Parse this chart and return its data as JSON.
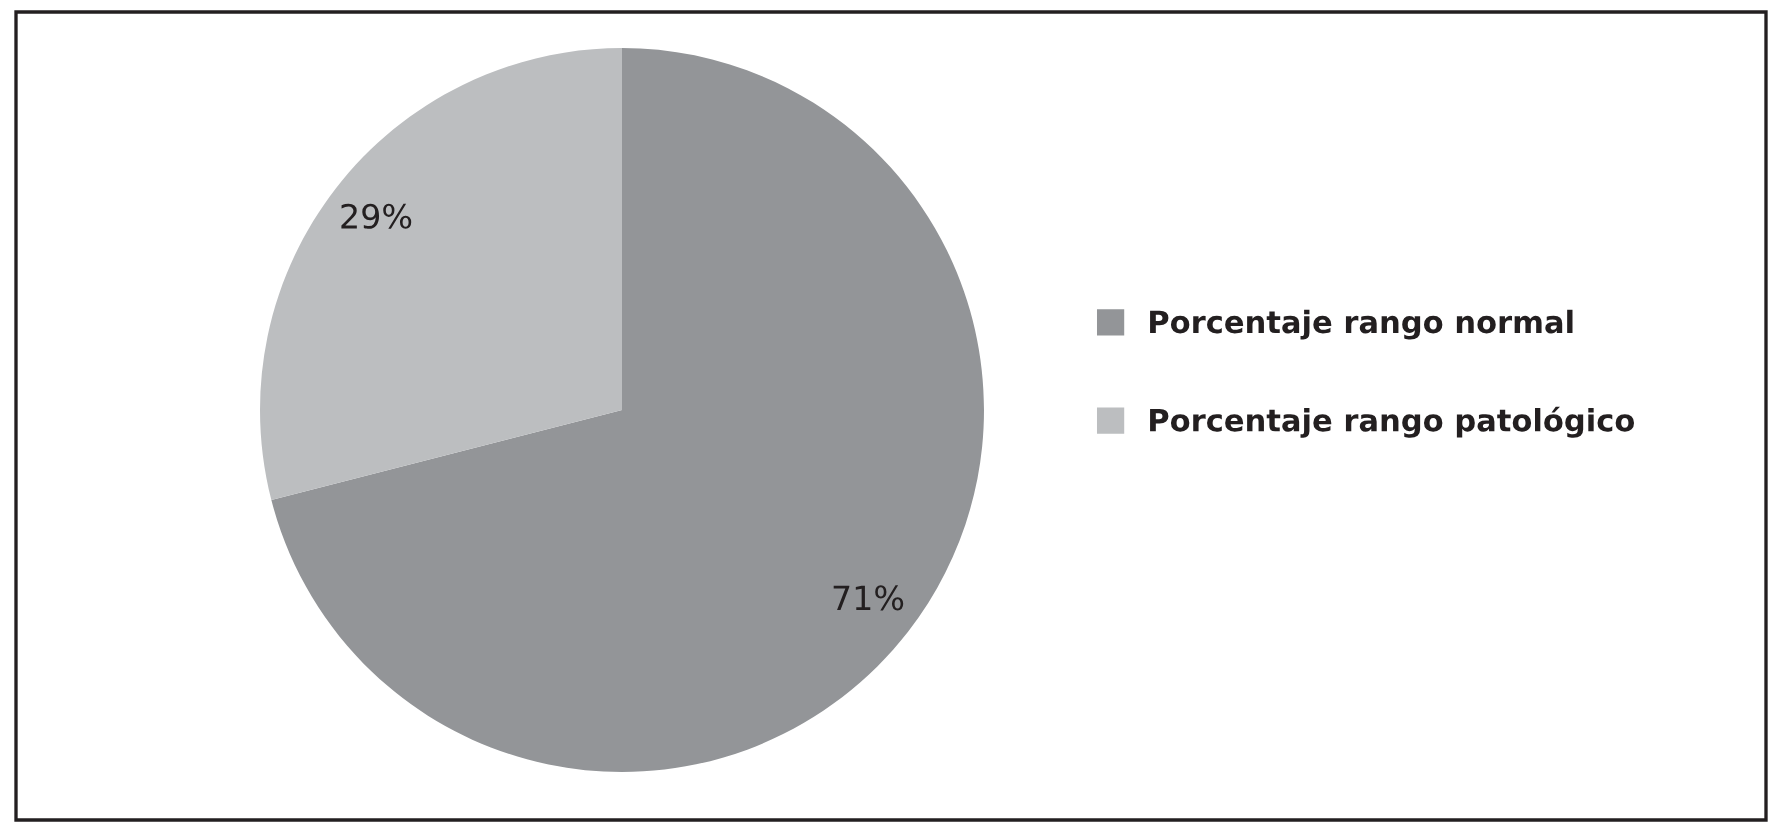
{
  "chart_data": {
    "type": "pie",
    "categories": [
      "Porcentaje rango normal",
      "Porcentaje rango patológico"
    ],
    "values": [
      71,
      29
    ],
    "colors": [
      "#939598",
      "#bcbec0"
    ],
    "value_labels": [
      "71%",
      "29%"
    ],
    "legend": "right"
  }
}
